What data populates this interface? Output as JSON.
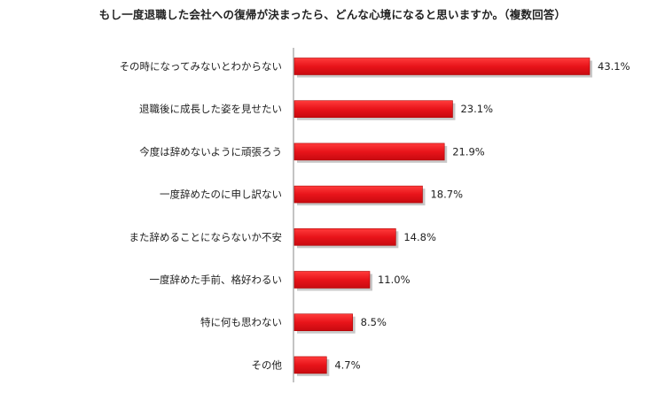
{
  "chart_data": {
    "type": "bar",
    "orientation": "horizontal",
    "title": "もし一度退職した会社への復帰が決まったら、どんな心境になると思いますか。（複数回答）",
    "categories": [
      "その時になってみないとわからない",
      "退職後に成長した姿を見せたい",
      "今度は辞めないように頑張ろう",
      "一度辞めたのに申し訳ない",
      "また辞めることにならないか不安",
      "一度辞めた手前、格好わるい",
      "特に何も思わない",
      "その他"
    ],
    "values": [
      43.1,
      23.1,
      21.9,
      18.7,
      14.8,
      11.0,
      8.5,
      4.7
    ],
    "value_labels": [
      "43.1%",
      "23.1%",
      "21.9%",
      "18.7%",
      "14.8%",
      "11.0%",
      "8.5%",
      "4.7%"
    ],
    "unit": "%",
    "xlim": [
      0,
      50
    ],
    "grid": false,
    "legend": "none",
    "bar_color": "#e8141a",
    "bar_shadow_color": "#9a9a9a"
  }
}
